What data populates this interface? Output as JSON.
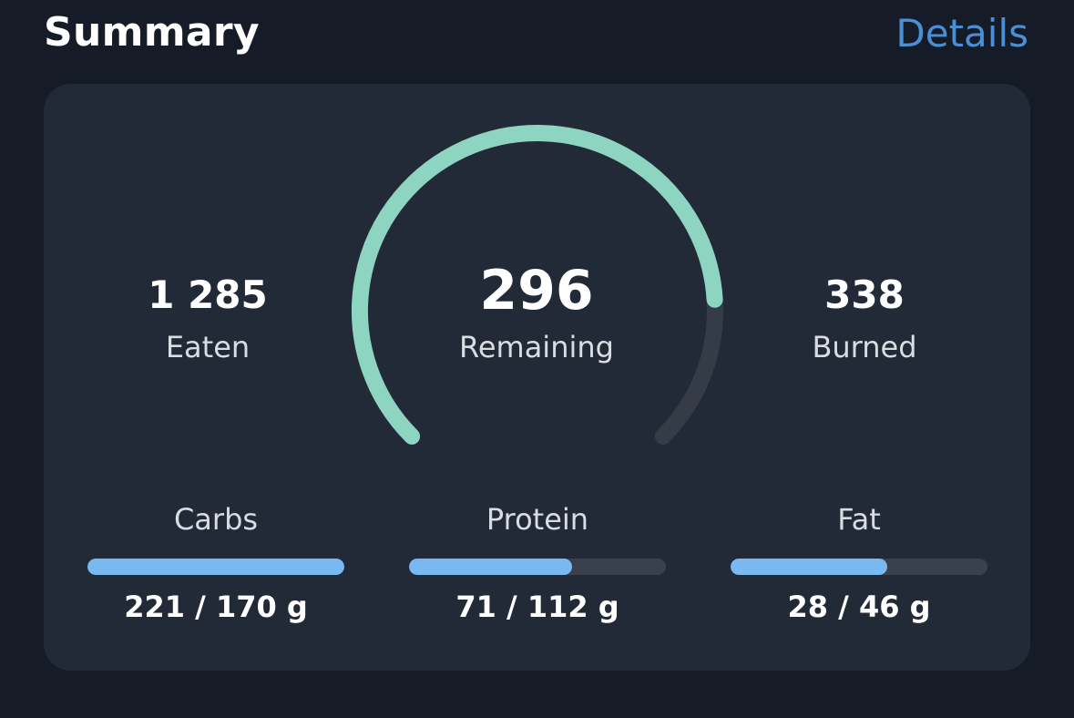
{
  "header": {
    "title": "Summary",
    "details_label": "Details"
  },
  "stats": {
    "eaten": {
      "value": "1 285",
      "label": "Eaten"
    },
    "remaining": {
      "value": "296",
      "label": "Remaining"
    },
    "burned": {
      "value": "338",
      "label": "Burned"
    }
  },
  "ring": {
    "progress_fraction": 0.82,
    "fill_color": "#8dd4c1",
    "track_color": "#353c48"
  },
  "macros": [
    {
      "label": "Carbs",
      "amount": "221 / 170 g",
      "fraction": 1.0
    },
    {
      "label": "Protein",
      "amount": "71 / 112 g",
      "fraction": 0.634
    },
    {
      "label": "Fat",
      "amount": "28 / 46 g",
      "fraction": 0.609
    }
  ],
  "colors": {
    "accent_link": "#4a8fd6",
    "bar_fill": "#79b8f0",
    "bar_track": "#3a414d",
    "card_bg": "#232a37",
    "page_bg": "#151b27"
  }
}
